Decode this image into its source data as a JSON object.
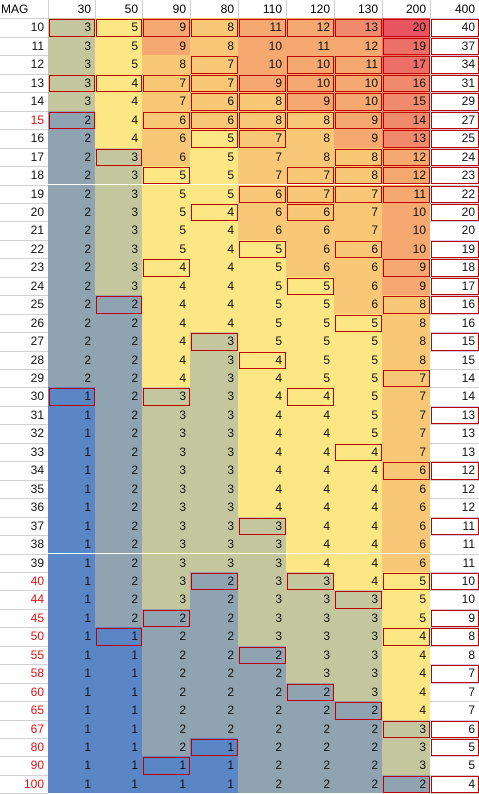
{
  "header": {
    "corner": "MAG",
    "columns": [
      "30",
      "50",
      "90",
      "80",
      "110",
      "120",
      "130",
      "200",
      "400"
    ]
  },
  "colors": {
    "blue": "#5a86c6",
    "steel": "#8fa3b0",
    "sage": "#c4c79e",
    "yellow": "#fde684",
    "lightorange": "#f9c877",
    "orange": "#f5a86f",
    "deeporange": "#f08a6c",
    "salmon": "#ec7068",
    "red": "#e8545f",
    "white": "#ffffff",
    "redtext": "#e01010",
    "outline": "#c00000"
  },
  "rows": [
    {
      "label": "10",
      "red": false,
      "values": [
        "3",
        "5",
        "9",
        "8",
        "11",
        "12",
        "13",
        "20",
        "40"
      ],
      "boxed": [
        0,
        1,
        2,
        3,
        4,
        5,
        6,
        7,
        8
      ]
    },
    {
      "label": "11",
      "red": false,
      "values": [
        "3",
        "5",
        "9",
        "8",
        "10",
        "11",
        "12",
        "19",
        "37"
      ],
      "boxed": [
        7,
        8
      ]
    },
    {
      "label": "12",
      "red": false,
      "values": [
        "3",
        "5",
        "8",
        "7",
        "10",
        "10",
        "11",
        "17",
        "34"
      ],
      "boxed": [
        3,
        5,
        6,
        7,
        8
      ]
    },
    {
      "label": "13",
      "red": false,
      "values": [
        "3",
        "4",
        "7",
        "7",
        "9",
        "10",
        "10",
        "16",
        "31"
      ],
      "boxed": [
        0,
        1,
        2,
        3,
        4,
        5,
        6,
        7,
        8
      ]
    },
    {
      "label": "14",
      "red": false,
      "values": [
        "3",
        "4",
        "7",
        "6",
        "8",
        "9",
        "10",
        "15",
        "29"
      ],
      "boxed": [
        3,
        4,
        5,
        6,
        7,
        8
      ]
    },
    {
      "label": "15",
      "red": true,
      "values": [
        "2",
        "4",
        "6",
        "6",
        "8",
        "8",
        "9",
        "14",
        "27"
      ],
      "boxed": [
        0,
        2,
        3,
        4,
        5,
        6,
        7,
        8
      ]
    },
    {
      "label": "16",
      "red": false,
      "values": [
        "2",
        "4",
        "6",
        "5",
        "7",
        "8",
        "9",
        "13",
        "25"
      ],
      "boxed": [
        3,
        4,
        7,
        8
      ]
    },
    {
      "label": "17",
      "red": false,
      "values": [
        "2",
        "3",
        "6",
        "5",
        "7",
        "8",
        "8",
        "12",
        "24"
      ],
      "boxed": [
        1,
        6,
        7,
        8
      ]
    },
    {
      "label": "18",
      "red": false,
      "values": [
        "2",
        "3",
        "5",
        "5",
        "7",
        "7",
        "8",
        "12",
        "23"
      ],
      "boxed": [
        2,
        5,
        6,
        7,
        8
      ]
    },
    {
      "label": "19",
      "red": false,
      "values": [
        "2",
        "3",
        "5",
        "5",
        "6",
        "7",
        "7",
        "11",
        "22"
      ],
      "boxed": [
        4,
        5,
        6,
        7,
        8
      ]
    },
    {
      "label": "20",
      "red": false,
      "values": [
        "2",
        "3",
        "5",
        "4",
        "6",
        "6",
        "7",
        "10",
        "20"
      ],
      "boxed": [
        3,
        5,
        8
      ]
    },
    {
      "label": "21",
      "red": false,
      "values": [
        "2",
        "3",
        "5",
        "4",
        "6",
        "6",
        "7",
        "10",
        "20"
      ],
      "boxed": []
    },
    {
      "label": "22",
      "red": false,
      "values": [
        "2",
        "3",
        "5",
        "4",
        "5",
        "6",
        "6",
        "10",
        "19"
      ],
      "boxed": [
        4,
        6,
        8
      ]
    },
    {
      "label": "23",
      "red": false,
      "values": [
        "2",
        "3",
        "4",
        "4",
        "5",
        "6",
        "6",
        "9",
        "18"
      ],
      "boxed": [
        2,
        7,
        8
      ]
    },
    {
      "label": "24",
      "red": false,
      "values": [
        "2",
        "3",
        "4",
        "4",
        "5",
        "5",
        "6",
        "9",
        "17"
      ],
      "boxed": [
        5,
        8
      ]
    },
    {
      "label": "25",
      "red": false,
      "values": [
        "2",
        "2",
        "4",
        "4",
        "5",
        "5",
        "6",
        "8",
        "16"
      ],
      "boxed": [
        1,
        7,
        8
      ]
    },
    {
      "label": "26",
      "red": false,
      "values": [
        "2",
        "2",
        "4",
        "4",
        "5",
        "5",
        "5",
        "8",
        "16"
      ],
      "boxed": [
        6
      ]
    },
    {
      "label": "27",
      "red": false,
      "values": [
        "2",
        "2",
        "4",
        "3",
        "5",
        "5",
        "5",
        "8",
        "15"
      ],
      "boxed": [
        3,
        8
      ]
    },
    {
      "label": "28",
      "red": false,
      "values": [
        "2",
        "2",
        "4",
        "3",
        "4",
        "5",
        "5",
        "8",
        "15"
      ],
      "boxed": [
        4
      ]
    },
    {
      "label": "29",
      "red": false,
      "values": [
        "2",
        "2",
        "4",
        "3",
        "4",
        "5",
        "5",
        "7",
        "14"
      ],
      "boxed": [
        7
      ]
    },
    {
      "label": "30",
      "red": false,
      "values": [
        "1",
        "2",
        "3",
        "3",
        "4",
        "4",
        "5",
        "7",
        "14"
      ],
      "boxed": [
        0,
        2,
        5
      ]
    },
    {
      "label": "31",
      "red": false,
      "values": [
        "1",
        "2",
        "3",
        "3",
        "4",
        "4",
        "5",
        "7",
        "13"
      ],
      "boxed": [
        8
      ]
    },
    {
      "label": "32",
      "red": false,
      "values": [
        "1",
        "2",
        "3",
        "3",
        "4",
        "4",
        "5",
        "7",
        "13"
      ],
      "boxed": []
    },
    {
      "label": "33",
      "red": false,
      "values": [
        "1",
        "2",
        "3",
        "3",
        "4",
        "4",
        "4",
        "7",
        "13"
      ],
      "boxed": [
        6
      ]
    },
    {
      "label": "34",
      "red": false,
      "values": [
        "1",
        "2",
        "3",
        "3",
        "4",
        "4",
        "4",
        "6",
        "12"
      ],
      "boxed": [
        7,
        8
      ]
    },
    {
      "label": "35",
      "red": false,
      "values": [
        "1",
        "2",
        "3",
        "3",
        "4",
        "4",
        "4",
        "6",
        "12"
      ],
      "boxed": []
    },
    {
      "label": "36",
      "red": false,
      "values": [
        "1",
        "2",
        "3",
        "3",
        "4",
        "4",
        "4",
        "6",
        "12"
      ],
      "boxed": []
    },
    {
      "label": "37",
      "red": false,
      "values": [
        "1",
        "2",
        "3",
        "3",
        "3",
        "4",
        "4",
        "6",
        "11"
      ],
      "boxed": [
        4,
        8
      ]
    },
    {
      "label": "38",
      "red": false,
      "values": [
        "1",
        "2",
        "3",
        "3",
        "3",
        "4",
        "4",
        "6",
        "11"
      ],
      "boxed": []
    },
    {
      "label": "39",
      "red": false,
      "values": [
        "1",
        "2",
        "3",
        "3",
        "3",
        "4",
        "4",
        "6",
        "11"
      ],
      "boxed": []
    },
    {
      "label": "40",
      "red": true,
      "values": [
        "1",
        "2",
        "3",
        "2",
        "3",
        "3",
        "4",
        "5",
        "10"
      ],
      "boxed": [
        3,
        5,
        7,
        8
      ]
    },
    {
      "label": "44",
      "red": true,
      "values": [
        "1",
        "2",
        "3",
        "2",
        "3",
        "3",
        "3",
        "5",
        "10"
      ],
      "boxed": [
        6
      ]
    },
    {
      "label": "45",
      "red": true,
      "values": [
        "1",
        "2",
        "2",
        "2",
        "3",
        "3",
        "3",
        "5",
        "9"
      ],
      "boxed": [
        2,
        8
      ]
    },
    {
      "label": "50",
      "red": true,
      "values": [
        "1",
        "1",
        "2",
        "2",
        "3",
        "3",
        "3",
        "4",
        "8"
      ],
      "boxed": [
        1,
        7,
        8
      ]
    },
    {
      "label": "55",
      "red": true,
      "values": [
        "1",
        "1",
        "2",
        "2",
        "2",
        "3",
        "3",
        "4",
        "8"
      ],
      "boxed": [
        4
      ]
    },
    {
      "label": "58",
      "red": true,
      "values": [
        "1",
        "1",
        "2",
        "2",
        "2",
        "3",
        "3",
        "4",
        "7"
      ],
      "boxed": [
        8
      ]
    },
    {
      "label": "60",
      "red": true,
      "values": [
        "1",
        "1",
        "2",
        "2",
        "2",
        "2",
        "3",
        "4",
        "7"
      ],
      "boxed": [
        5
      ]
    },
    {
      "label": "65",
      "red": true,
      "values": [
        "1",
        "1",
        "2",
        "2",
        "2",
        "2",
        "2",
        "4",
        "7"
      ],
      "boxed": [
        6
      ]
    },
    {
      "label": "67",
      "red": true,
      "values": [
        "1",
        "1",
        "2",
        "2",
        "2",
        "2",
        "2",
        "3",
        "6"
      ],
      "boxed": [
        7,
        8
      ]
    },
    {
      "label": "80",
      "red": true,
      "values": [
        "1",
        "1",
        "2",
        "1",
        "2",
        "2",
        "2",
        "3",
        "5"
      ],
      "boxed": [
        3,
        8
      ]
    },
    {
      "label": "90",
      "red": true,
      "values": [
        "1",
        "1",
        "1",
        "1",
        "2",
        "2",
        "2",
        "3",
        "5"
      ],
      "boxed": [
        2
      ]
    },
    {
      "label": "100",
      "red": true,
      "values": [
        "1",
        "1",
        "1",
        "1",
        "2",
        "2",
        "2",
        "2",
        "4"
      ],
      "boxed": [
        7,
        8
      ]
    }
  ]
}
